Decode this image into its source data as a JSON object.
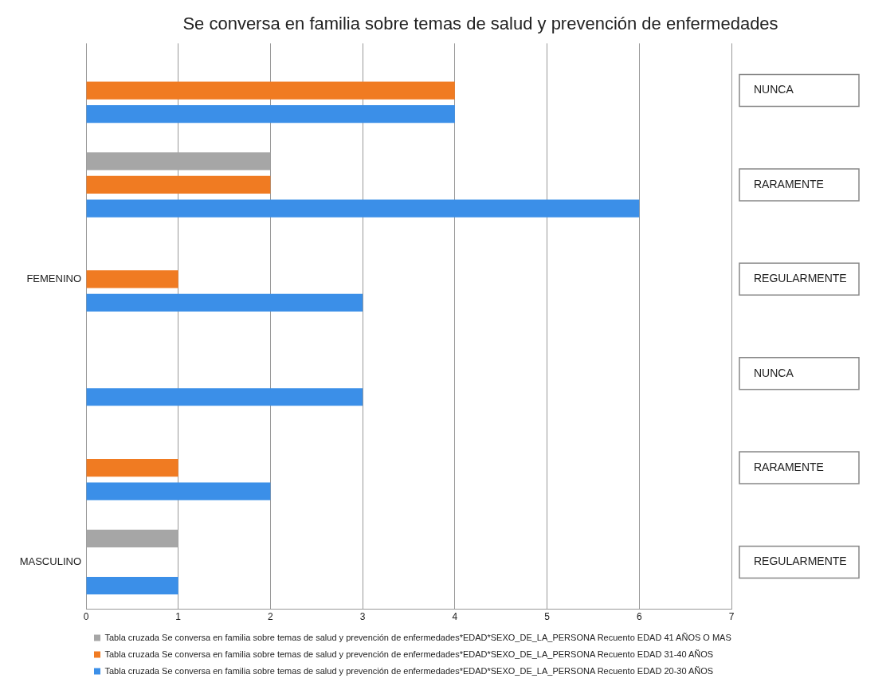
{
  "chart_data": {
    "type": "bar",
    "orientation": "horizontal",
    "title": "Se conversa en familia sobre temas de salud y prevención de enfermedades",
    "categories": [
      "NUNCA",
      "RARAMENTE",
      "REGULARMENTE",
      "NUNCA",
      "RARAMENTE",
      "REGULARMENTE"
    ],
    "series": [
      {
        "name": "Tabla cruzada Se conversa en familia sobre temas de salud y prevención de enfermedades*EDAD*SEXO_DE_LA_PERSONA Recuento EDAD 41 AÑOS O MAS",
        "color": "#a6a6a6",
        "values": [
          null,
          2,
          null,
          null,
          null,
          1
        ]
      },
      {
        "name": "Tabla cruzada Se conversa en familia sobre temas de salud y prevención de enfermedades*EDAD*SEXO_DE_LA_PERSONA Recuento EDAD 31-40 AÑOS",
        "color": "#f07b22",
        "values": [
          4,
          2,
          1,
          null,
          1,
          null
        ]
      },
      {
        "name": "Tabla cruzada Se conversa en familia sobre temas de salud y prevención de enfermedades*EDAD*SEXO_DE_LA_PERSONA Recuento EDAD 20-30 AÑOS",
        "color": "#3b8fe8",
        "values": [
          4,
          6,
          3,
          3,
          2,
          1
        ]
      }
    ],
    "annotations": [
      "FEMENINO",
      "MASCULINO"
    ],
    "xlim": [
      0,
      7
    ],
    "xticks": [
      0,
      1,
      2,
      3,
      4,
      5,
      6,
      7
    ],
    "grid": "x",
    "legend": "bottom"
  }
}
